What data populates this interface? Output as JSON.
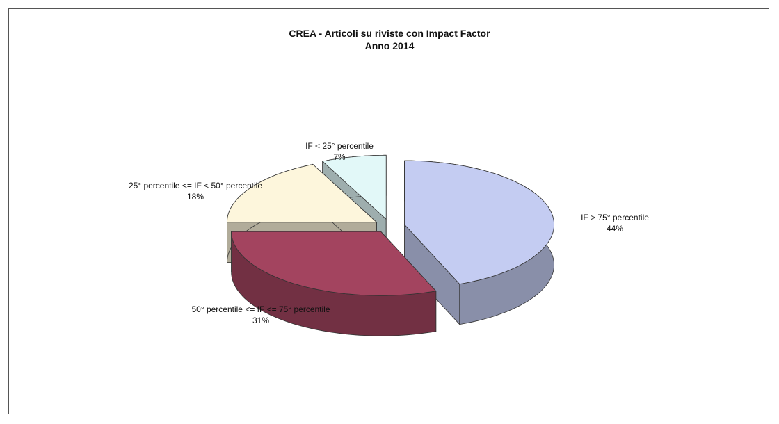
{
  "chart_data": {
    "type": "pie",
    "title": "CREA - Articoli su riviste con Impact Factor",
    "subtitle": "Anno 2014",
    "categories": [
      "IF > 75° percentile",
      "50° percentile <= IF <= 75° percentile",
      "25° percentile <= IF < 50° percentile",
      "IF < 25° percentile"
    ],
    "values": [
      44,
      31,
      18,
      7
    ],
    "value_labels": [
      "44%",
      "31%",
      "18%",
      "7%"
    ],
    "colors": [
      "#c4ccf2",
      "#a3445f",
      "#fdf6dc",
      "#e2f8f8"
    ]
  }
}
